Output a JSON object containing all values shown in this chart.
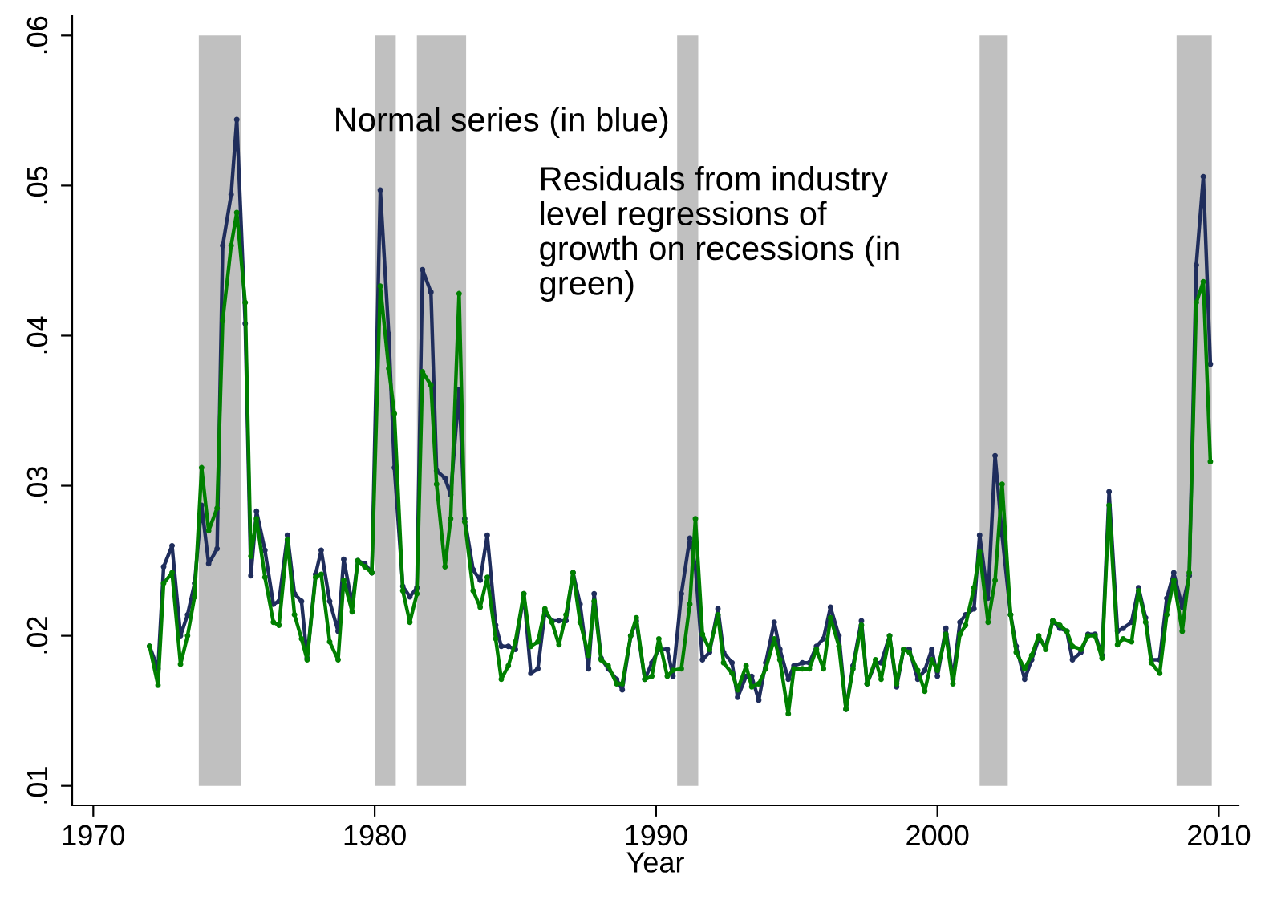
{
  "chart_data": {
    "type": "line",
    "xlabel": "Year",
    "annotations": [
      "Normal series (in blue)",
      "Residuals from industry\nlevel regressions of\ngrowth on recessions (in\ngreen)"
    ],
    "xlim": [
      1969.25,
      2010.7
    ],
    "ylim": [
      0.0087,
      0.0613
    ],
    "xticks": [
      1970,
      1980,
      1990,
      2000,
      2010
    ],
    "yticks": [
      {
        "value": 0.01,
        "label": ".01"
      },
      {
        "value": 0.02,
        "label": ".02"
      },
      {
        "value": 0.03,
        "label": ".03"
      },
      {
        "value": 0.04,
        "label": ".04"
      },
      {
        "value": 0.05,
        "label": ".05"
      },
      {
        "value": 0.06,
        "label": ".06"
      }
    ],
    "grid": false,
    "marker": "circle",
    "line_style": "solid",
    "bands": [
      {
        "axis": "x",
        "from": 1973.75,
        "to": 1975.25,
        "color": "#c0c0c0"
      },
      {
        "axis": "x",
        "from": 1980.0,
        "to": 1980.75,
        "color": "#c0c0c0"
      },
      {
        "axis": "x",
        "from": 1981.5,
        "to": 1983.25,
        "color": "#c0c0c0"
      },
      {
        "axis": "x",
        "from": 1990.75,
        "to": 1991.5,
        "color": "#c0c0c0"
      },
      {
        "axis": "x",
        "from": 2001.5,
        "to": 2002.5,
        "color": "#c0c0c0"
      },
      {
        "axis": "x",
        "from": 2008.5,
        "to": 2009.75,
        "color": "#c0c0c0"
      }
    ],
    "x": [
      1972.0,
      1972.3,
      1972.5,
      1972.8,
      1973.1,
      1973.35,
      1973.6,
      1973.85,
      1974.1,
      1974.4,
      1974.6,
      1974.9,
      1975.1,
      1975.4,
      1975.6,
      1975.8,
      1976.1,
      1976.4,
      1976.6,
      1976.9,
      1977.15,
      1977.4,
      1977.6,
      1977.9,
      1978.1,
      1978.4,
      1978.7,
      1978.9,
      1979.2,
      1979.4,
      1979.65,
      1979.9,
      1980.2,
      1980.5,
      1980.7,
      1981.0,
      1981.25,
      1981.5,
      1981.7,
      1982.0,
      1982.2,
      1982.5,
      1982.7,
      1983.0,
      1983.2,
      1983.5,
      1983.75,
      1984.0,
      1984.3,
      1984.5,
      1984.75,
      1985.0,
      1985.3,
      1985.55,
      1985.8,
      1986.05,
      1986.3,
      1986.55,
      1986.8,
      1987.05,
      1987.3,
      1987.6,
      1987.8,
      1988.05,
      1988.3,
      1988.6,
      1988.8,
      1989.1,
      1989.3,
      1989.6,
      1989.85,
      1990.1,
      1990.4,
      1990.6,
      1990.9,
      1991.2,
      1991.4,
      1991.65,
      1991.9,
      1992.2,
      1992.4,
      1992.7,
      1992.9,
      1993.2,
      1993.4,
      1993.65,
      1993.9,
      1994.2,
      1994.4,
      1994.7,
      1994.9,
      1995.2,
      1995.45,
      1995.7,
      1995.95,
      1996.2,
      1996.5,
      1996.75,
      1997.0,
      1997.3,
      1997.5,
      1997.8,
      1998.0,
      1998.3,
      1998.55,
      1998.8,
      1999.0,
      1999.3,
      1999.55,
      1999.8,
      2000.0,
      2000.3,
      2000.55,
      2000.8,
      2001.0,
      2001.3,
      2001.5,
      2001.8,
      2002.05,
      2002.3,
      2002.6,
      2002.8,
      2003.1,
      2003.35,
      2003.6,
      2003.85,
      2004.1,
      2004.35,
      2004.6,
      2004.8,
      2005.1,
      2005.35,
      2005.6,
      2005.85,
      2006.1,
      2006.4,
      2006.6,
      2006.9,
      2007.15,
      2007.4,
      2007.6,
      2007.9,
      2008.15,
      2008.4,
      2008.7,
      2008.95,
      2009.2,
      2009.45,
      2009.7
    ],
    "series": [
      {
        "color": "#1f2d5c",
        "values": [
          0.0193,
          0.0178,
          0.0246,
          0.026,
          0.02,
          0.0214,
          0.0235,
          0.0287,
          0.0248,
          0.0258,
          0.046,
          0.0494,
          0.0544,
          0.0408,
          0.024,
          0.0283,
          0.0257,
          0.0221,
          0.0223,
          0.0267,
          0.0228,
          0.0223,
          0.0185,
          0.0241,
          0.0257,
          0.0223,
          0.0203,
          0.0251,
          0.0221,
          0.025,
          0.0248,
          0.0242,
          0.0497,
          0.0401,
          0.0312,
          0.0233,
          0.0226,
          0.0232,
          0.0444,
          0.0429,
          0.031,
          0.0305,
          0.0294,
          0.0364,
          0.0278,
          0.0244,
          0.0237,
          0.0267,
          0.0207,
          0.0193,
          0.0193,
          0.0191,
          0.0228,
          0.0175,
          0.0178,
          0.0216,
          0.021,
          0.021,
          0.021,
          0.0242,
          0.0221,
          0.0178,
          0.0228,
          0.0185,
          0.0178,
          0.0171,
          0.0164,
          0.02,
          0.021,
          0.0171,
          0.0182,
          0.0191,
          0.0191,
          0.0173,
          0.0228,
          0.0265,
          0.0246,
          0.0184,
          0.0189,
          0.0218,
          0.0189,
          0.0182,
          0.0159,
          0.0173,
          0.0173,
          0.0157,
          0.0182,
          0.0209,
          0.0191,
          0.0171,
          0.018,
          0.0182,
          0.0182,
          0.0193,
          0.0198,
          0.0219,
          0.02,
          0.0151,
          0.018,
          0.021,
          0.0168,
          0.0182,
          0.0182,
          0.02,
          0.0166,
          0.0191,
          0.0191,
          0.0171,
          0.0177,
          0.0191,
          0.0173,
          0.0205,
          0.0171,
          0.0209,
          0.0214,
          0.0218,
          0.0267,
          0.0225,
          0.032,
          0.0267,
          0.0214,
          0.0193,
          0.0171,
          0.0184,
          0.0198,
          0.0193,
          0.021,
          0.0205,
          0.0203,
          0.0184,
          0.0189,
          0.0201,
          0.0201,
          0.0187,
          0.0296,
          0.0203,
          0.0205,
          0.0209,
          0.0232,
          0.0212,
          0.0184,
          0.0184,
          0.0225,
          0.0242,
          0.0219,
          0.024,
          0.0447,
          0.0506,
          0.0381
        ]
      },
      {
        "color": "#008000",
        "values": [
          0.0193,
          0.0167,
          0.0235,
          0.0242,
          0.0181,
          0.02,
          0.0226,
          0.0312,
          0.027,
          0.0285,
          0.041,
          0.046,
          0.0482,
          0.0422,
          0.0253,
          0.0278,
          0.0239,
          0.0209,
          0.0207,
          0.0264,
          0.0214,
          0.0198,
          0.0184,
          0.0239,
          0.0241,
          0.0196,
          0.0184,
          0.0237,
          0.0216,
          0.025,
          0.0246,
          0.0242,
          0.0433,
          0.0378,
          0.0348,
          0.023,
          0.0209,
          0.0228,
          0.0376,
          0.0367,
          0.0301,
          0.0246,
          0.0278,
          0.0428,
          0.0276,
          0.023,
          0.0219,
          0.0239,
          0.0198,
          0.0171,
          0.018,
          0.0196,
          0.0228,
          0.0193,
          0.0196,
          0.0218,
          0.0209,
          0.0194,
          0.0214,
          0.0242,
          0.0209,
          0.0187,
          0.0223,
          0.0184,
          0.018,
          0.0168,
          0.0168,
          0.02,
          0.0212,
          0.0171,
          0.0173,
          0.0198,
          0.0173,
          0.0177,
          0.0178,
          0.0221,
          0.0278,
          0.0201,
          0.0191,
          0.0214,
          0.0182,
          0.0175,
          0.0164,
          0.018,
          0.0166,
          0.0168,
          0.0178,
          0.0198,
          0.0184,
          0.0148,
          0.0178,
          0.0178,
          0.0178,
          0.0191,
          0.0178,
          0.0212,
          0.0193,
          0.0151,
          0.0178,
          0.0207,
          0.0168,
          0.0184,
          0.0171,
          0.02,
          0.0168,
          0.0191,
          0.0189,
          0.0177,
          0.0163,
          0.0184,
          0.0177,
          0.0201,
          0.0168,
          0.0201,
          0.0207,
          0.0232,
          0.0256,
          0.0209,
          0.0237,
          0.0301,
          0.0214,
          0.0189,
          0.0178,
          0.0187,
          0.02,
          0.0191,
          0.021,
          0.0207,
          0.0203,
          0.0193,
          0.0191,
          0.02,
          0.02,
          0.0185,
          0.0287,
          0.0194,
          0.0198,
          0.0196,
          0.023,
          0.0209,
          0.0182,
          0.0175,
          0.0214,
          0.0237,
          0.0203,
          0.0242,
          0.0422,
          0.0436,
          0.0316
        ]
      }
    ]
  }
}
